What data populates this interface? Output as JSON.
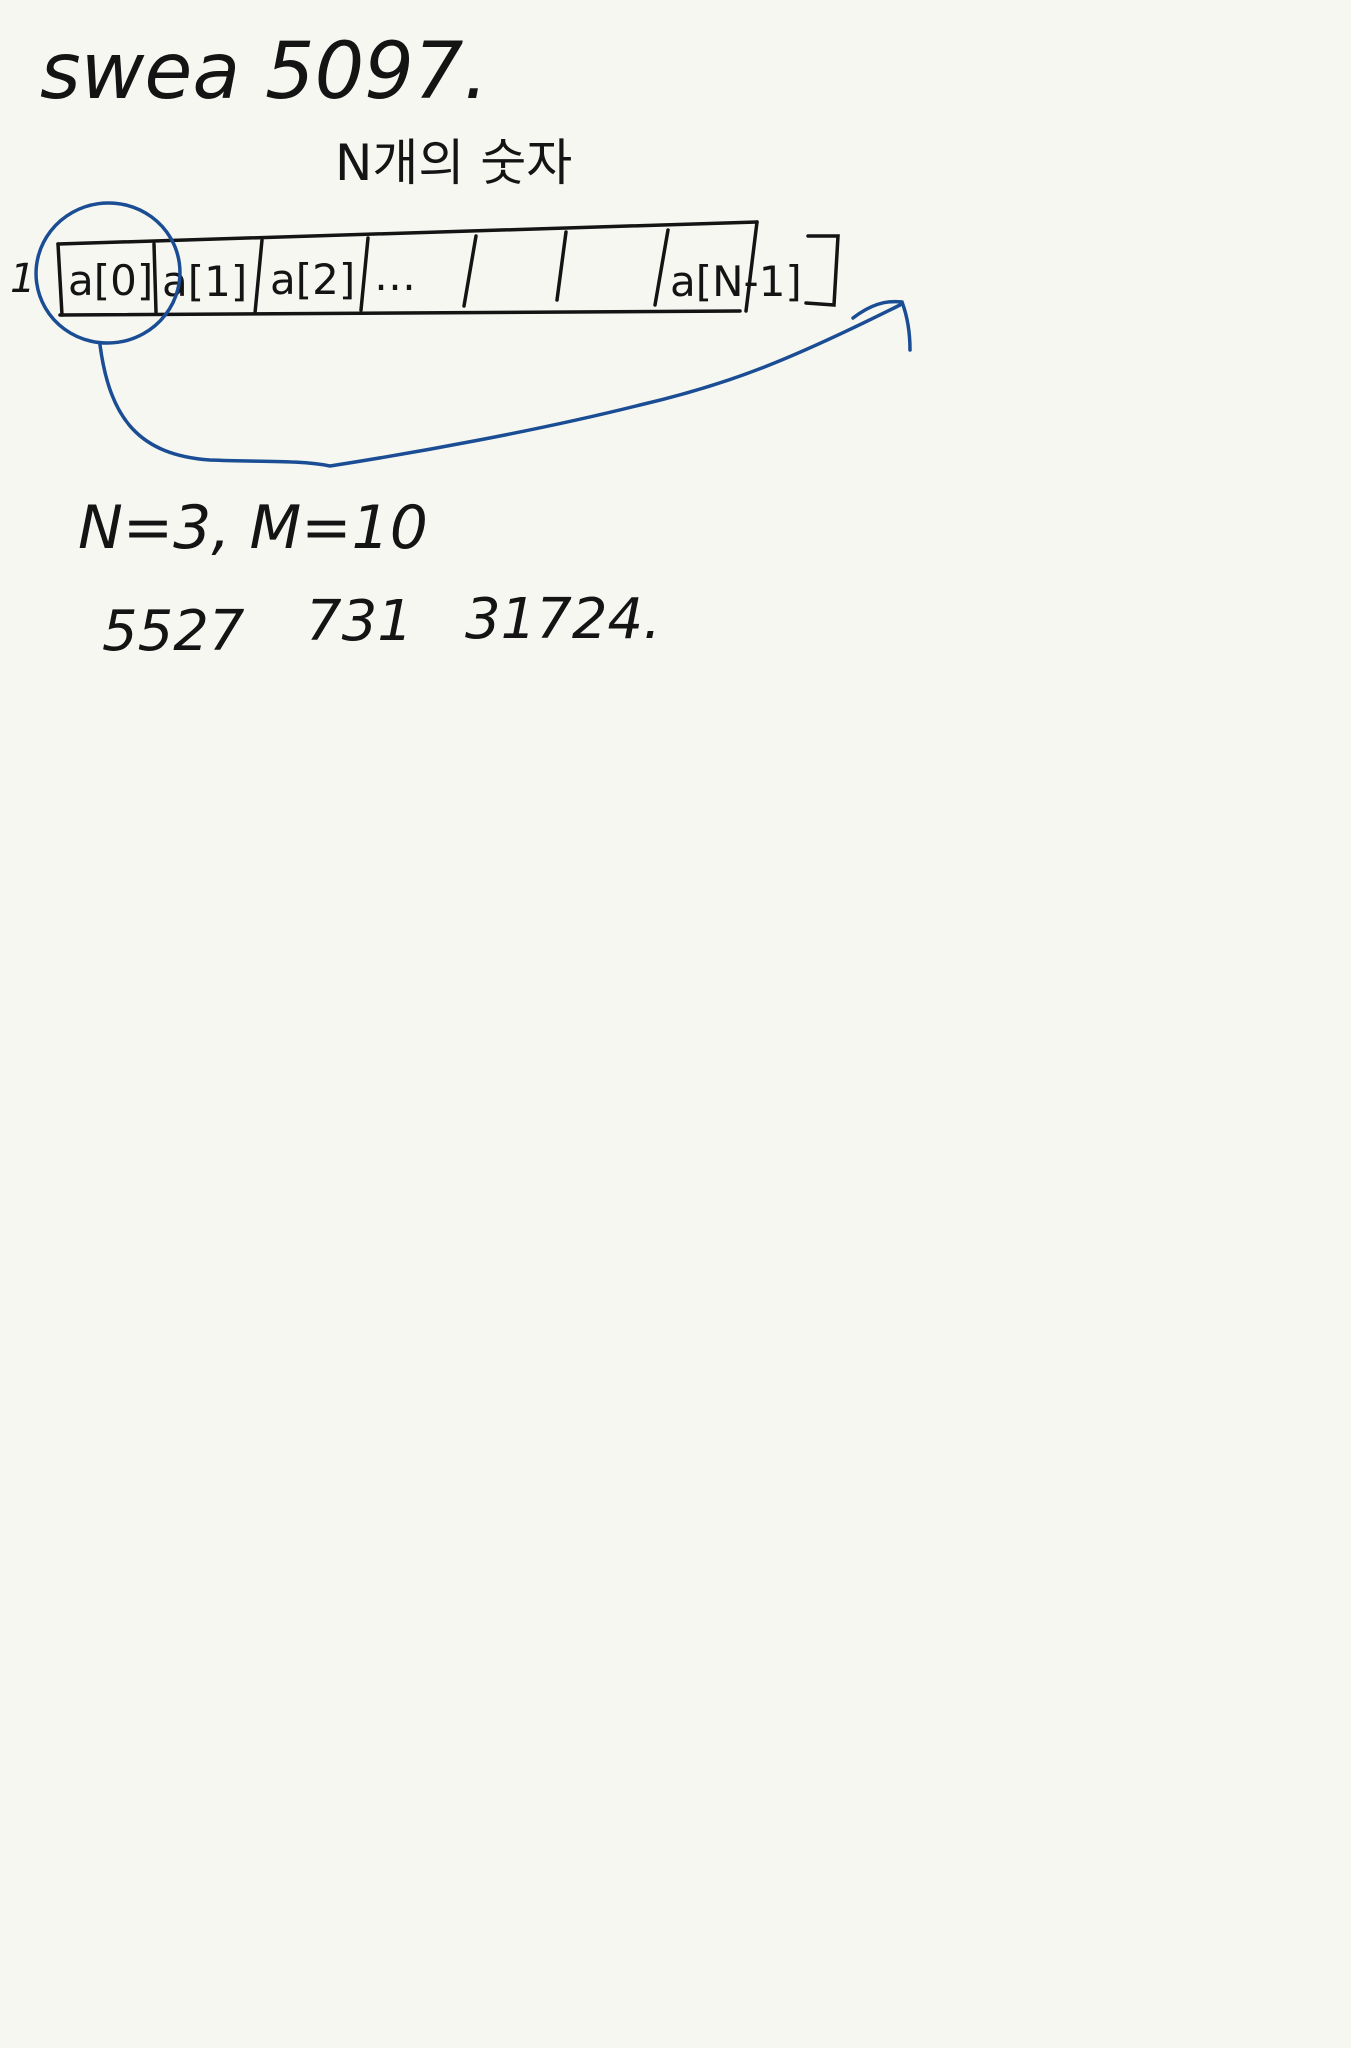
{
  "note": {
    "title": "swea 5097.",
    "subtitle": "N개의 숫자",
    "array": {
      "cells": [
        "a[0]",
        "a[1]",
        "a[2]",
        "…",
        "",
        "",
        "a[N-1]"
      ],
      "row_marker": "1"
    },
    "params": "N=3,  M=10",
    "numbers": [
      "5527",
      "731",
      "31724."
    ]
  },
  "colors": {
    "paper": "#f7f7f2",
    "ink_black": "#141414",
    "ink_blue": "#1a4d94"
  }
}
